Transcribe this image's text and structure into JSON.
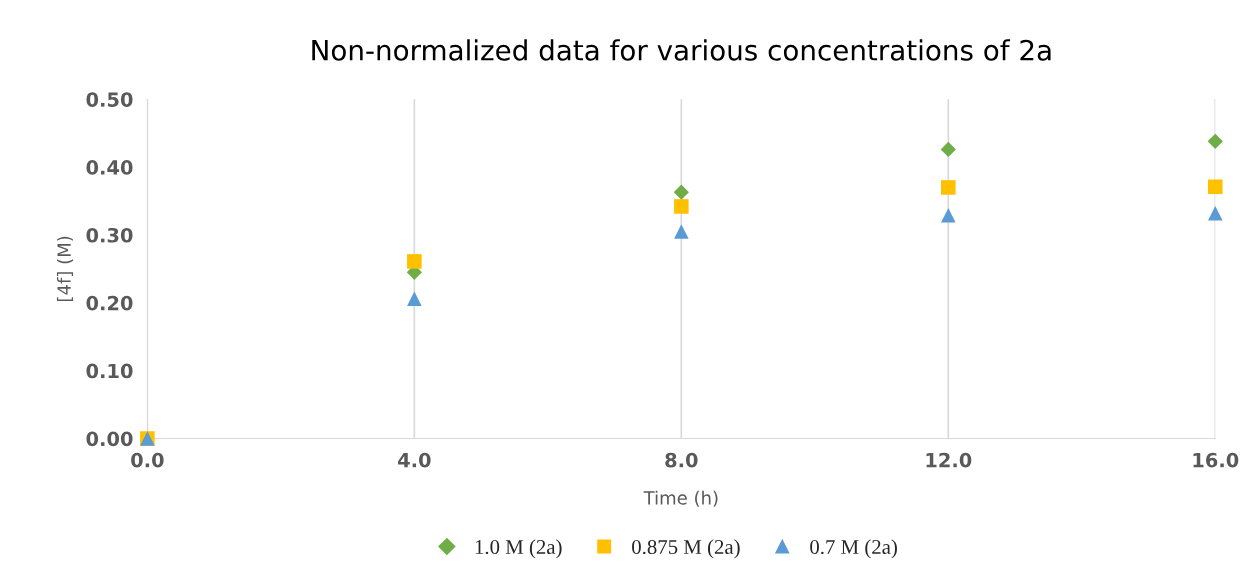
{
  "chart_data": {
    "type": "scatter",
    "title": "Non-normalized data for various concentrations of 2a",
    "xlabel": "Time (h)",
    "ylabel": "[4f] (M)",
    "x": [
      0,
      4,
      8,
      12,
      16
    ],
    "series": [
      {
        "name": "1.0 M (2a)",
        "color": "#70ad47",
        "marker": "diamond",
        "values": [
          null,
          0.245,
          0.363,
          0.426,
          0.438
        ]
      },
      {
        "name": "0.875 M (2a)",
        "color": "#ffc000",
        "marker": "square",
        "values": [
          0,
          0.261,
          0.342,
          0.37,
          0.371
        ]
      },
      {
        "name": "0.7 M (2a)",
        "color": "#5b9bd5",
        "marker": "triangle",
        "values": [
          0,
          0.206,
          0.305,
          0.329,
          0.332
        ]
      }
    ],
    "xlim": [
      0,
      16
    ],
    "xticks": [
      {
        "value": 0,
        "label": "0.0"
      },
      {
        "value": 4,
        "label": "4.0"
      },
      {
        "value": 8,
        "label": "8.0"
      },
      {
        "value": 12,
        "label": "12.0"
      },
      {
        "value": 16,
        "label": "16.0"
      }
    ],
    "ylim": [
      0,
      0.5
    ],
    "yticks": [
      {
        "value": 0,
        "label": "0.00"
      },
      {
        "value": 0.1,
        "label": "0.10"
      },
      {
        "value": 0.2,
        "label": "0.20"
      },
      {
        "value": 0.3,
        "label": "0.30"
      },
      {
        "value": 0.4,
        "label": "0.40"
      },
      {
        "value": 0.5,
        "label": "0.50"
      }
    ],
    "grid": "x",
    "legend": "bottom"
  }
}
